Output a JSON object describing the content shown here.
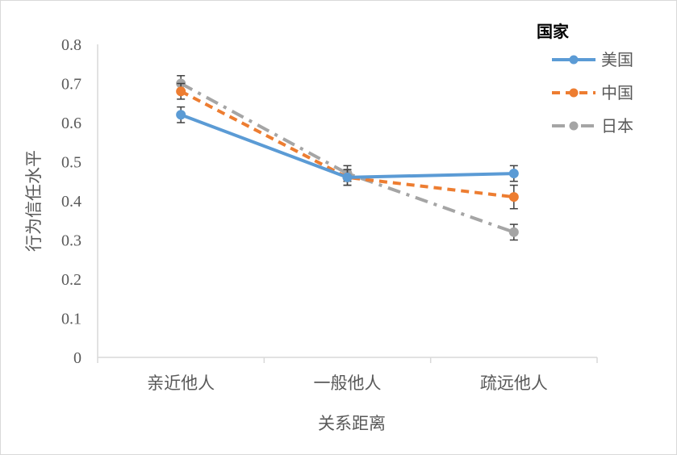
{
  "chart_data": {
    "type": "line",
    "categories": [
      "亲近他人",
      "一般他人",
      "疏远他人"
    ],
    "xlabel": "关系距离",
    "ylabel": "行为信任水平",
    "ylim": [
      0,
      0.8
    ],
    "yticks": [
      "0",
      "0.1",
      "0.2",
      "0.3",
      "0.4",
      "0.5",
      "0.6",
      "0.7",
      "0.8"
    ],
    "grid": false,
    "legend": {
      "title": "国家",
      "placement": "top-right"
    },
    "series": [
      {
        "name": "美国",
        "values": [
          0.62,
          0.46,
          0.47
        ],
        "errors": [
          0.02,
          0.02,
          0.02
        ],
        "color": "#5B9BD5",
        "dash": "solid"
      },
      {
        "name": "中国",
        "values": [
          0.68,
          0.46,
          0.41
        ],
        "errors": [
          0.02,
          0.02,
          0.03
        ],
        "color": "#ED7D31",
        "dash": "dash"
      },
      {
        "name": "日本",
        "values": [
          0.7,
          0.47,
          0.32
        ],
        "errors": [
          0.02,
          0.02,
          0.02
        ],
        "color": "#A5A5A5",
        "dash": "dashdot"
      }
    ]
  }
}
